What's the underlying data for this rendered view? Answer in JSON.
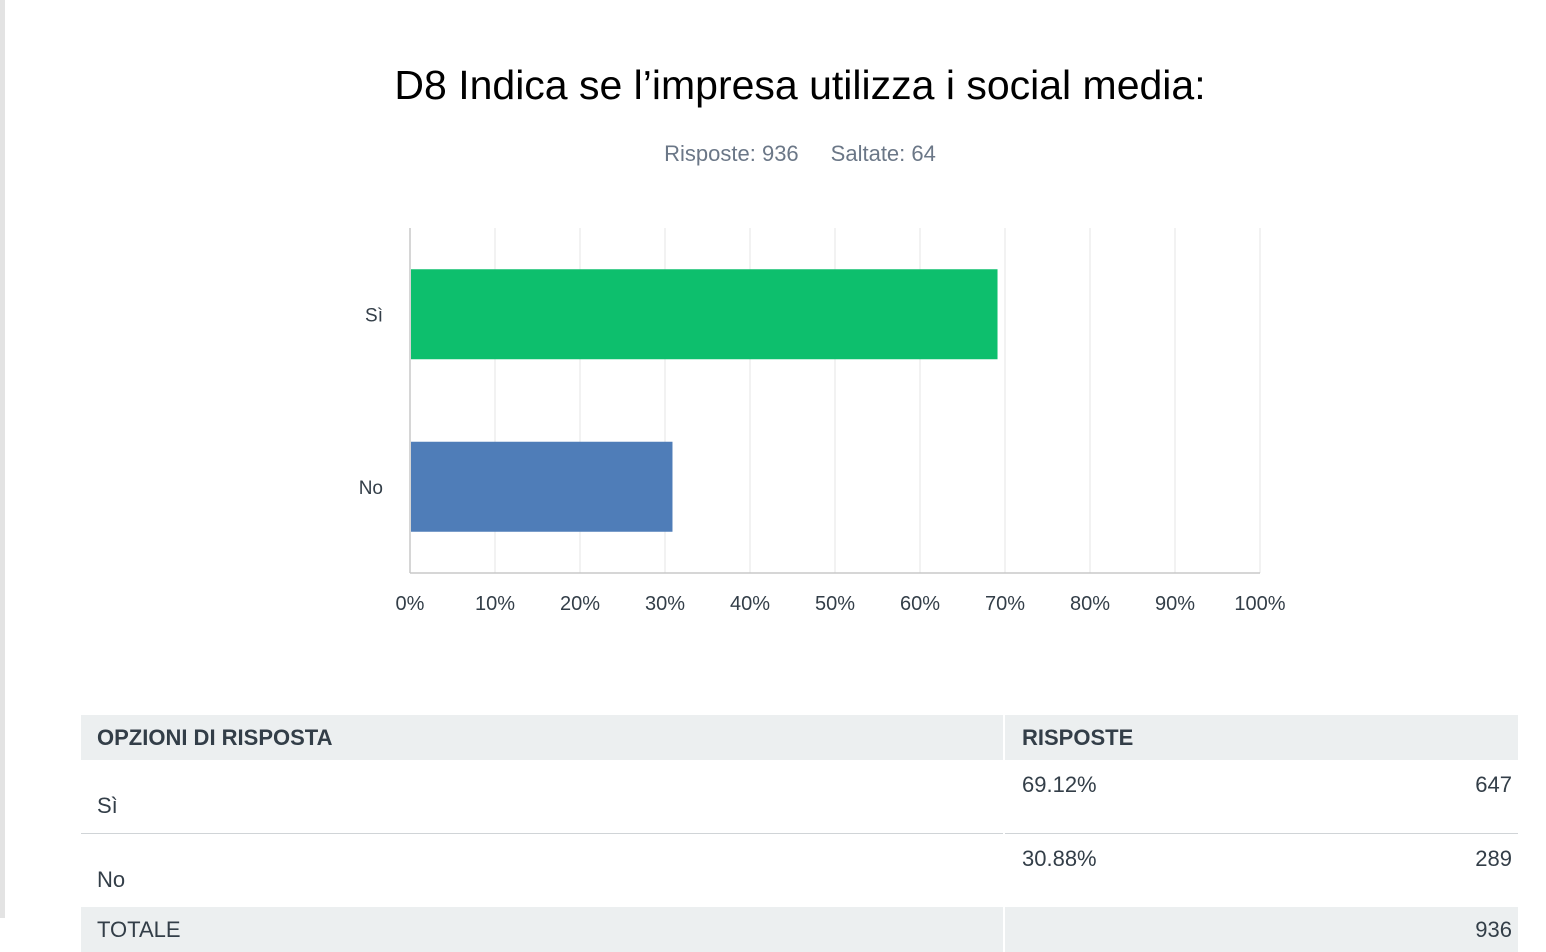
{
  "chart_data": {
    "type": "bar",
    "orientation": "horizontal",
    "title": "D8 Indica se l’impresa utilizza i social media:",
    "answered_label": "Risposte: 936",
    "skipped_label": "Saltate: 64",
    "categories": [
      "Sì",
      "No"
    ],
    "values": [
      69.12,
      30.88
    ],
    "colors": [
      "#0dbf6d",
      "#4f7db8"
    ],
    "xlim": [
      0,
      100
    ],
    "xticks": [
      "0%",
      "10%",
      "20%",
      "30%",
      "40%",
      "50%",
      "60%",
      "70%",
      "80%",
      "90%",
      "100%"
    ],
    "grid": true
  },
  "table": {
    "headers": [
      "OPZIONI DI RISPOSTA",
      "RISPOSTE"
    ],
    "rows": [
      {
        "option": "Sì",
        "percent": "69.12%",
        "count": "647"
      },
      {
        "option": "No",
        "percent": "30.88%",
        "count": "289"
      }
    ],
    "total_label": "TOTALE",
    "total_count": "936"
  }
}
